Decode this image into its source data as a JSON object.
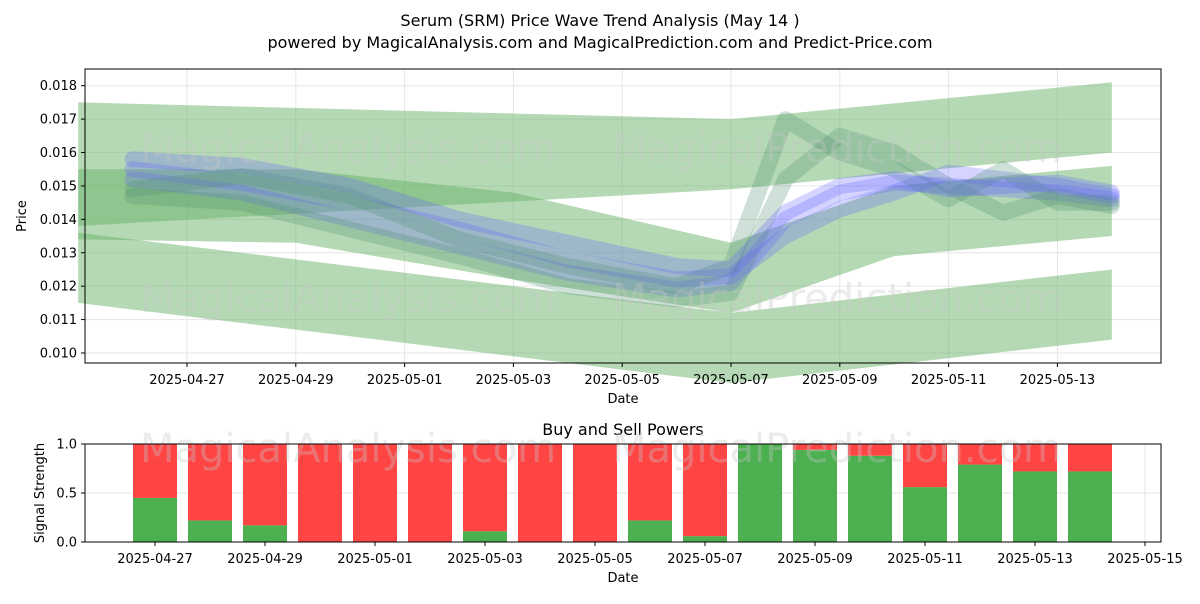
{
  "title_line1": "Serum (SRM) Price Wave Trend Analysis (May 14 )",
  "title_line2": "powered by MagicalAnalysis.com and MagicalPrediction.com and Predict-Price.com",
  "watermarks": [
    "MagicalAnalysis.com",
    "MagicalPrediction.com"
  ],
  "colors": {
    "green": "#4caf50",
    "red": "#ff4444",
    "blue": "#6464ff",
    "band_green": "#6ab46a"
  },
  "chart_data": [
    {
      "type": "line",
      "title": "",
      "xlabel": "Date",
      "ylabel": "Price",
      "x_start": "2025-04-25",
      "ylim": [
        0.0097,
        0.0185
      ],
      "y_ticks": [
        "0.010",
        "0.011",
        "0.012",
        "0.013",
        "0.014",
        "0.015",
        "0.016",
        "0.017",
        "0.018"
      ],
      "x_ticks": [
        "2025-04-27",
        "2025-04-29",
        "2025-05-01",
        "2025-05-03",
        "2025-05-05",
        "2025-05-07",
        "2025-05-09",
        "2025-05-11",
        "2025-05-13"
      ],
      "grid": true,
      "bands": [
        {
          "name": "wide-upper",
          "x": [
            "2025-04-25",
            "2025-05-07",
            "2025-05-14"
          ],
          "lower": [
            0.0138,
            0.0149,
            0.016
          ],
          "upper": [
            0.0175,
            0.017,
            0.0181
          ]
        },
        {
          "name": "wide-lower",
          "x": [
            "2025-04-25",
            "2025-05-07",
            "2025-05-14"
          ],
          "lower": [
            0.0115,
            0.0091,
            0.0104
          ],
          "upper": [
            0.0136,
            0.0112,
            0.0125
          ]
        },
        {
          "name": "mid-green",
          "x": [
            "2025-04-25",
            "2025-04-29",
            "2025-05-03",
            "2025-05-07",
            "2025-05-10",
            "2025-05-14"
          ],
          "lower": [
            0.0134,
            0.0133,
            0.0122,
            0.0112,
            0.0129,
            0.0135
          ],
          "upper": [
            0.0155,
            0.0155,
            0.0148,
            0.0133,
            0.015,
            0.0156
          ]
        }
      ],
      "series": [
        {
          "x": [
            "2025-04-26",
            "2025-04-28",
            "2025-04-30",
            "2025-05-02",
            "2025-05-04",
            "2025-05-06",
            "2025-05-07",
            "2025-05-08",
            "2025-05-09",
            "2025-05-10",
            "2025-05-11",
            "2025-05-12",
            "2025-05-13",
            "2025-05-14"
          ],
          "values": [
            0.0152,
            0.0148,
            0.014,
            0.0132,
            0.0124,
            0.0119,
            0.0121,
            0.014,
            0.0148,
            0.0151,
            0.015,
            0.0149,
            0.0148,
            0.0146
          ]
        },
        {
          "x": [
            "2025-04-26",
            "2025-04-28",
            "2025-04-30",
            "2025-05-02",
            "2025-05-04",
            "2025-05-06",
            "2025-05-07",
            "2025-05-08",
            "2025-05-09",
            "2025-05-10",
            "2025-05-11",
            "2025-05-12",
            "2025-05-13",
            "2025-05-14"
          ],
          "values": [
            0.0147,
            0.0145,
            0.0137,
            0.0129,
            0.012,
            0.0116,
            0.0118,
            0.0152,
            0.0165,
            0.016,
            0.015,
            0.0142,
            0.0147,
            0.0144
          ]
        },
        {
          "x": [
            "2025-04-26",
            "2025-04-28",
            "2025-04-30",
            "2025-05-02",
            "2025-05-04",
            "2025-05-06",
            "2025-05-07",
            "2025-05-08",
            "2025-05-09",
            "2025-05-10",
            "2025-05-11",
            "2025-05-12",
            "2025-05-13",
            "2025-05-14"
          ],
          "values": [
            0.0155,
            0.0151,
            0.0145,
            0.0137,
            0.0128,
            0.0122,
            0.0123,
            0.0135,
            0.0143,
            0.0148,
            0.0154,
            0.0152,
            0.015,
            0.0147
          ]
        },
        {
          "x": [
            "2025-04-26",
            "2025-04-28",
            "2025-04-30",
            "2025-05-02",
            "2025-05-04",
            "2025-05-06",
            "2025-05-07",
            "2025-05-08",
            "2025-05-09",
            "2025-05-10",
            "2025-05-11",
            "2025-05-12",
            "2025-05-13",
            "2025-05-14"
          ],
          "values": [
            0.0149,
            0.0153,
            0.0147,
            0.0134,
            0.0126,
            0.012,
            0.0126,
            0.017,
            0.016,
            0.0155,
            0.0146,
            0.0155,
            0.0145,
            0.0145
          ]
        },
        {
          "x": [
            "2025-04-26",
            "2025-04-28",
            "2025-04-30",
            "2025-05-02",
            "2025-05-04",
            "2025-05-06",
            "2025-05-07",
            "2025-05-08",
            "2025-05-09",
            "2025-05-10",
            "2025-05-11",
            "2025-05-12",
            "2025-05-13",
            "2025-05-14"
          ],
          "values": [
            0.0158,
            0.0156,
            0.015,
            0.014,
            0.0133,
            0.0126,
            0.0125,
            0.0142,
            0.015,
            0.0152,
            0.0149,
            0.015,
            0.0151,
            0.0148
          ]
        }
      ]
    },
    {
      "type": "bar",
      "title": "Buy and Sell Powers",
      "xlabel": "Date",
      "ylabel": "Signal Strength",
      "ylim": [
        0,
        1
      ],
      "y_ticks": [
        "0.0",
        "0.5",
        "1.0"
      ],
      "x_ticks": [
        "2025-04-27",
        "2025-04-29",
        "2025-05-01",
        "2025-05-03",
        "2025-05-05",
        "2025-05-07",
        "2025-05-09",
        "2025-05-11",
        "2025-05-13",
        "2025-05-15"
      ],
      "categories": [
        "2025-04-27",
        "2025-04-28",
        "2025-04-29",
        "2025-04-30",
        "2025-05-01",
        "2025-05-02",
        "2025-05-03",
        "2025-05-04",
        "2025-05-05",
        "2025-05-06",
        "2025-05-07",
        "2025-05-08",
        "2025-05-09",
        "2025-05-10",
        "2025-05-11",
        "2025-05-12",
        "2025-05-13",
        "2025-05-14"
      ],
      "series": [
        {
          "values": [
            0.45,
            0.22,
            0.17,
            0.0,
            0.0,
            0.0,
            0.11,
            0.0,
            0.0,
            0.22,
            0.06,
            1.0,
            0.94,
            0.88,
            0.56,
            0.79,
            0.72,
            0.72
          ]
        },
        {
          "values": [
            0.55,
            0.78,
            0.83,
            1.0,
            1.0,
            1.0,
            0.89,
            1.0,
            1.0,
            0.78,
            0.94,
            0.0,
            0.06,
            0.12,
            0.44,
            0.21,
            0.28,
            0.28
          ]
        }
      ],
      "grid": true
    }
  ]
}
